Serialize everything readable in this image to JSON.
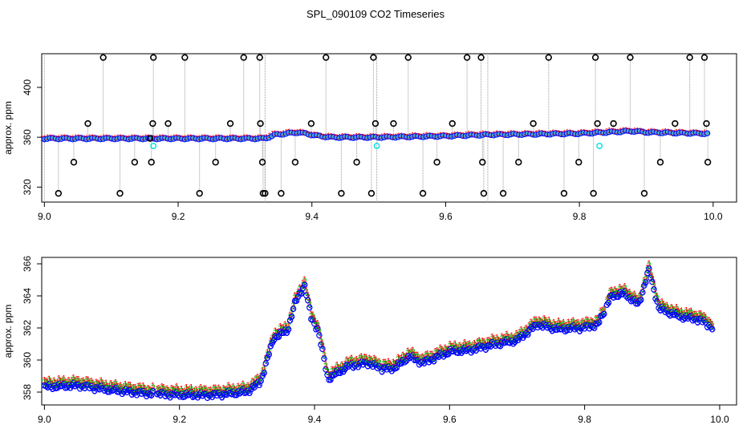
{
  "title": "SPL_090109  CO2 Timeseries",
  "colors": {
    "series1": "#ff0000",
    "series2": "#00c000",
    "series3": "#0000ff",
    "circle": "#0000ff",
    "fill": "#4fa8c8",
    "spike": "#000000",
    "cyan": "#00e0e0",
    "line": "#999999"
  },
  "chart_data": [
    {
      "type": "scatter",
      "name": "full-range",
      "ylabel": "approx. ppm",
      "xlabel": "",
      "xlim": [
        8.996,
        10.035
      ],
      "ylim": [
        308,
        427
      ],
      "xticks": [
        "9.0",
        "9.2",
        "9.4",
        "9.6",
        "9.8",
        "10.0"
      ],
      "yticks": [
        "320",
        "360",
        "400"
      ],
      "spike_x": [
        9.021,
        9.044,
        9.065,
        9.088,
        9.113,
        9.135,
        9.158,
        9.16,
        9.162,
        9.163,
        9.185,
        9.21,
        9.232,
        9.256,
        9.278,
        9.298,
        9.322,
        9.323,
        9.326,
        9.327,
        9.33,
        9.354,
        9.375,
        9.399,
        9.421,
        9.444,
        9.467,
        9.489,
        9.492,
        9.495,
        9.522,
        9.544,
        9.566,
        9.587,
        9.61,
        9.632,
        9.653,
        9.655,
        9.657,
        9.686,
        9.709,
        9.731,
        9.754,
        9.777,
        9.799,
        9.821,
        9.824,
        9.827,
        9.851,
        9.876,
        9.897,
        9.921,
        9.943,
        9.965,
        9.987,
        9.99,
        9.992
      ],
      "spike_y": [
        315,
        340,
        371,
        424,
        315,
        340,
        359,
        340,
        371,
        424,
        371,
        424,
        315,
        340,
        371,
        424,
        424,
        371,
        340,
        315,
        315,
        315,
        340,
        371,
        424,
        315,
        340,
        315,
        424,
        371,
        371,
        424,
        315,
        340,
        371,
        424,
        424,
        340,
        315,
        315,
        340,
        371,
        424,
        315,
        340,
        315,
        424,
        371,
        371,
        424,
        315,
        340,
        371,
        424,
        424,
        371,
        340
      ],
      "cyan_x": [
        9.163,
        9.497,
        9.83
      ],
      "cyan_y": [
        353,
        353,
        353
      ]
    },
    {
      "type": "scatter",
      "name": "zoom",
      "ylabel": "approx. ppm",
      "xlabel": "",
      "xlim": [
        8.996,
        10.025
      ],
      "ylim": [
        357.2,
        366.4
      ],
      "xticks": [
        "9.0",
        "9.2",
        "9.4",
        "9.6",
        "9.8",
        "10.0"
      ],
      "yticks": [
        "358",
        "360",
        "362",
        "364",
        "366"
      ],
      "segment_x": [
        [
          9.0,
          9.163
        ],
        [
          9.167,
          9.497
        ],
        [
          9.5,
          9.83
        ],
        [
          9.833,
          9.99
        ]
      ],
      "anchor_x": [
        9.0,
        9.05,
        9.1,
        9.15,
        9.2,
        9.25,
        9.3,
        9.32,
        9.34,
        9.36,
        9.37,
        9.385,
        9.395,
        9.405,
        9.42,
        9.45,
        9.48,
        9.5,
        9.52,
        9.54,
        9.56,
        9.6,
        9.63,
        9.66,
        9.7,
        9.73,
        9.76,
        9.8,
        9.82,
        9.84,
        9.86,
        9.88,
        9.895,
        9.91,
        9.94,
        9.97,
        9.99
      ],
      "anchor_y": [
        358.5,
        358.6,
        358.3,
        358.1,
        358.0,
        358.0,
        358.2,
        358.8,
        361.6,
        362.0,
        363.6,
        364.9,
        362.8,
        362.1,
        359.0,
        359.8,
        360.0,
        359.6,
        359.7,
        360.4,
        360.0,
        360.7,
        360.8,
        361.1,
        361.4,
        362.4,
        362.1,
        362.2,
        362.4,
        364.2,
        364.3,
        363.6,
        365.8,
        363.4,
        362.9,
        362.7,
        362.2
      ]
    }
  ]
}
